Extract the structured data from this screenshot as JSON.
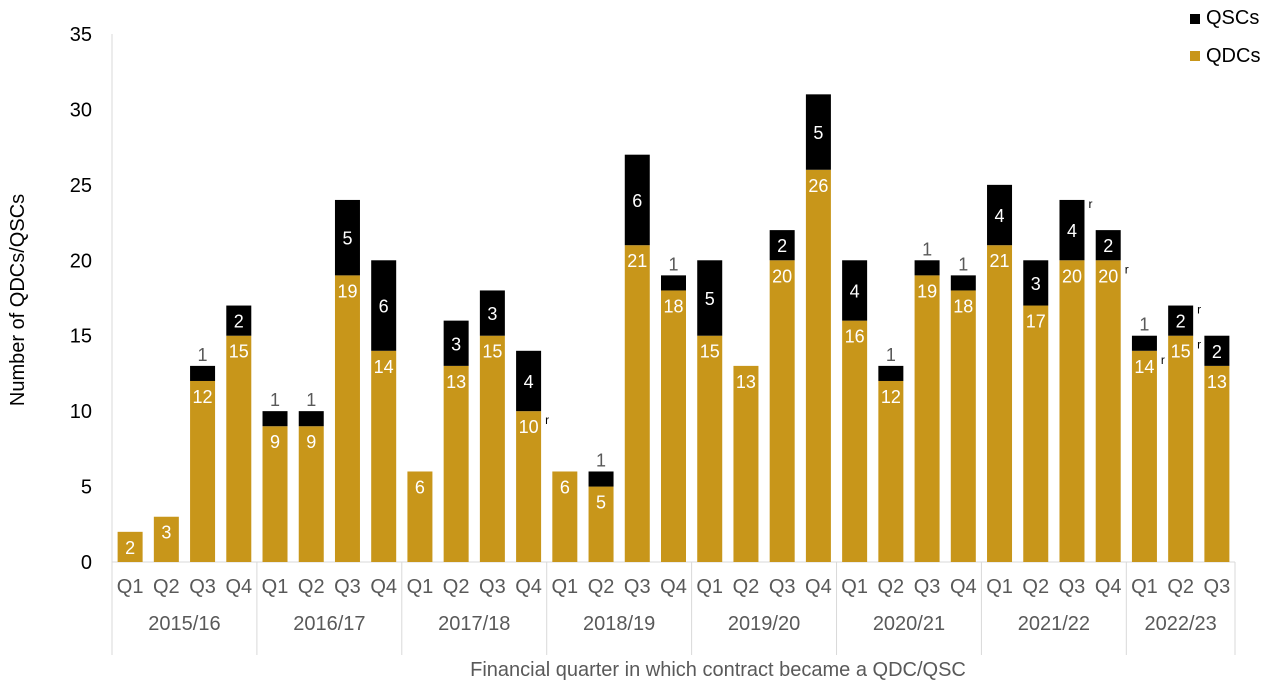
{
  "chart_data": {
    "type": "bar",
    "stacked": true,
    "ylabel": "Number of QDCs/QSCs",
    "xlabel": "Financial quarter in which contract became a QDC/QSC",
    "ylim": [
      0,
      35
    ],
    "yticks": [
      "0",
      "5",
      "10",
      "15",
      "20",
      "25",
      "30",
      "35"
    ],
    "legend_position": "top-right",
    "groups": [
      {
        "label": "2015/16",
        "quarters": [
          "Q1",
          "Q2",
          "Q3",
          "Q4"
        ]
      },
      {
        "label": "2016/17",
        "quarters": [
          "Q1",
          "Q2",
          "Q3",
          "Q4"
        ]
      },
      {
        "label": "2017/18",
        "quarters": [
          "Q1",
          "Q2",
          "Q3",
          "Q4"
        ]
      },
      {
        "label": "2018/19",
        "quarters": [
          "Q1",
          "Q2",
          "Q3",
          "Q4"
        ]
      },
      {
        "label": "2019/20",
        "quarters": [
          "Q1",
          "Q2",
          "Q3",
          "Q4"
        ]
      },
      {
        "label": "2020/21",
        "quarters": [
          "Q1",
          "Q2",
          "Q3",
          "Q4"
        ]
      },
      {
        "label": "2021/22",
        "quarters": [
          "Q1",
          "Q2",
          "Q3",
          "Q4"
        ]
      },
      {
        "label": "2022/23",
        "quarters": [
          "Q1",
          "Q2",
          "Q3"
        ]
      }
    ],
    "series": [
      {
        "name": "QDCs",
        "color": "#C8961A",
        "values": [
          2,
          3,
          12,
          15,
          9,
          9,
          19,
          14,
          6,
          13,
          15,
          10,
          6,
          5,
          21,
          18,
          15,
          13,
          20,
          26,
          16,
          12,
          19,
          18,
          21,
          17,
          20,
          20,
          14,
          15,
          13
        ]
      },
      {
        "name": "QSCs",
        "color": "#000000",
        "values": [
          0,
          0,
          1,
          2,
          1,
          1,
          5,
          6,
          0,
          3,
          3,
          4,
          0,
          1,
          6,
          1,
          5,
          0,
          2,
          5,
          4,
          1,
          1,
          1,
          4,
          3,
          4,
          2,
          1,
          2,
          2
        ]
      }
    ],
    "revised_marker": "r",
    "revised": [
      {
        "index": 11,
        "series": "QDCs"
      },
      {
        "index": 26,
        "series": "QSCs"
      },
      {
        "index": 27,
        "series": "QDCs"
      },
      {
        "index": 28,
        "series": "QDCs"
      },
      {
        "index": 29,
        "series": "QDCs"
      },
      {
        "index": 29,
        "series": "QSCs"
      }
    ],
    "colors": {
      "text": "#000000",
      "tick_text": "#595959",
      "axis": "#D9D9D9",
      "inside_label": "#FFFFFF"
    }
  }
}
